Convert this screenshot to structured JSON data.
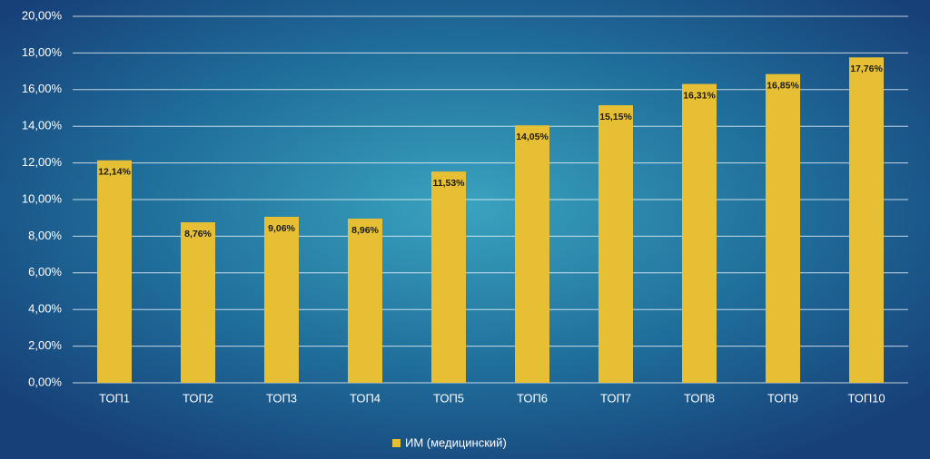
{
  "chart_data": {
    "type": "bar",
    "categories": [
      "ТОП1",
      "ТОП2",
      "ТОП3",
      "ТОП4",
      "ТОП5",
      "ТОП6",
      "ТОП7",
      "ТОП8",
      "ТОП9",
      "ТОП10"
    ],
    "series": [
      {
        "name": "ИМ (медицинский)",
        "color": "#e6bf35",
        "values": [
          12.14,
          8.76,
          9.06,
          8.96,
          11.53,
          14.05,
          15.15,
          16.31,
          16.85,
          17.76
        ],
        "value_labels": [
          "12,14%",
          "8,76%",
          "9,06%",
          "8,96%",
          "11,53%",
          "14,05%",
          "15,15%",
          "16,31%",
          "16,85%",
          "17,76%"
        ]
      }
    ],
    "ylim": [
      0,
      20
    ],
    "yticks": [
      {
        "value": 0,
        "label": "0,00%"
      },
      {
        "value": 2,
        "label": "2,00%"
      },
      {
        "value": 4,
        "label": "4,00%"
      },
      {
        "value": 6,
        "label": "6,00%"
      },
      {
        "value": 8,
        "label": "8,00%"
      },
      {
        "value": 10,
        "label": "10,00%"
      },
      {
        "value": 12,
        "label": "12,00%"
      },
      {
        "value": 14,
        "label": "14,00%"
      },
      {
        "value": 16,
        "label": "16,00%"
      },
      {
        "value": 18,
        "label": "18,00%"
      },
      {
        "value": 20,
        "label": "20,00%"
      }
    ],
    "grid": true,
    "legend": "bottom"
  }
}
